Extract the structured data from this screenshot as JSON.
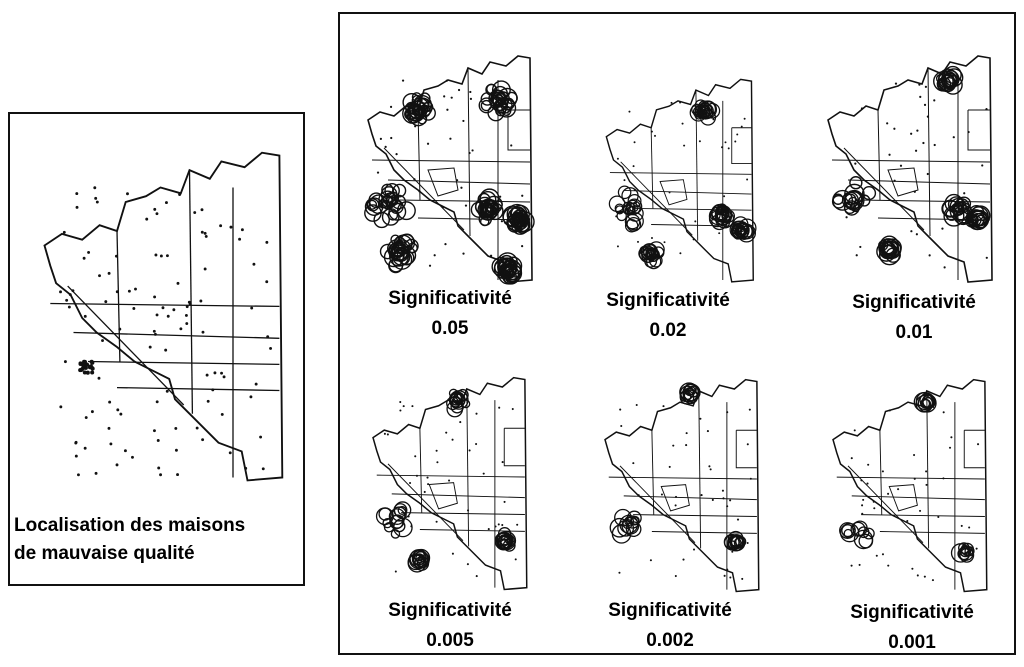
{
  "left": {
    "caption_line1": "Localisation des maisons",
    "caption_line2": "de mauvaise qualité"
  },
  "panels": [
    {
      "label": "Significativité",
      "value": "0.05"
    },
    {
      "label": "Significativité",
      "value": "0.02"
    },
    {
      "label": "Significativité",
      "value": "0.01"
    },
    {
      "label": "Significativité",
      "value": "0.005"
    },
    {
      "label": "Significativité",
      "value": "0.002"
    },
    {
      "label": "Significativité",
      "value": "0.001"
    }
  ],
  "colors": {
    "ink": "#111111",
    "background": "#ffffff"
  }
}
